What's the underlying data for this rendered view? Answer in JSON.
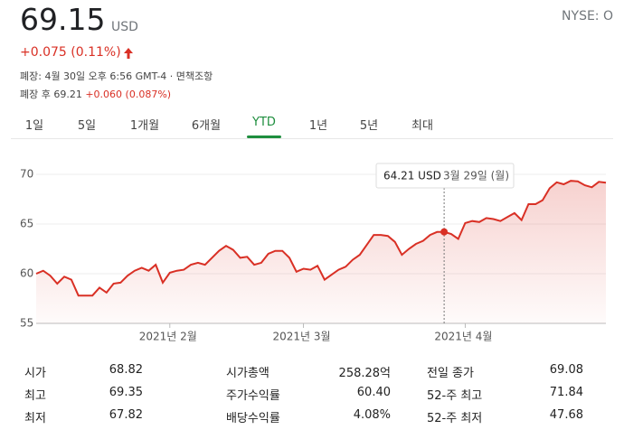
{
  "header": {
    "price": "69.15",
    "currency": "USD",
    "exchange": "NYSE: O",
    "change": "+0.075 (0.11%)",
    "closed": "폐장: 4월 30일 오후 6:56 GMT-4 · 면책조항",
    "after_hours_label": "폐장 후 69.21",
    "after_hours_change": "+0.060 (0.087%)"
  },
  "tabs": {
    "items": [
      "1일",
      "5일",
      "1개월",
      "6개월",
      "YTD",
      "1년",
      "5년",
      "최대"
    ],
    "active": 4
  },
  "chart_data": {
    "type": "line",
    "color": "#d93025",
    "categories": [
      null,
      null,
      null,
      null,
      null,
      null,
      null,
      null,
      null,
      null,
      null,
      null,
      null,
      null,
      null,
      null,
      null,
      null,
      null,
      "2021년 2월",
      null,
      null,
      null,
      null,
      null,
      null,
      null,
      null,
      null,
      null,
      null,
      null,
      null,
      null,
      null,
      null,
      null,
      null,
      "2021년 3월",
      null,
      null,
      null,
      null,
      null,
      null,
      null,
      null,
      null,
      null,
      null,
      null,
      null,
      null,
      null,
      null,
      null,
      null,
      null,
      null,
      null,
      null,
      "2021년 4월",
      null,
      null,
      null,
      null,
      null,
      null,
      null,
      null,
      null,
      null,
      null,
      null,
      null,
      null,
      null,
      null,
      null,
      null,
      null,
      null
    ],
    "values": [
      60.0,
      60.3,
      59.8,
      59.0,
      59.7,
      59.4,
      57.8,
      57.8,
      57.8,
      58.6,
      58.1,
      59.0,
      59.1,
      59.8,
      60.3,
      60.6,
      60.3,
      60.9,
      59.1,
      60.1,
      60.3,
      60.4,
      60.9,
      61.1,
      60.9,
      61.6,
      62.3,
      62.8,
      62.4,
      61.6,
      61.7,
      60.9,
      61.1,
      62.0,
      62.3,
      62.3,
      61.6,
      60.2,
      60.5,
      60.4,
      60.8,
      59.4,
      59.9,
      60.4,
      60.7,
      61.4,
      61.9,
      62.9,
      63.9,
      63.9,
      63.8,
      63.2,
      61.9,
      62.5,
      63.0,
      63.3,
      63.9,
      64.2,
      64.21,
      64.0,
      63.5,
      65.1,
      65.3,
      65.2,
      65.6,
      65.5,
      65.3,
      65.7,
      66.1,
      65.4,
      67.0,
      67.0,
      67.4,
      68.6,
      69.2,
      69.0,
      69.35,
      69.3,
      68.9,
      68.7,
      69.25,
      69.15
    ],
    "ylim": [
      55,
      70
    ],
    "yticks": [
      55,
      60,
      65,
      70
    ],
    "grid": true,
    "tooltip": {
      "index": 58,
      "value_label": "64.21 USD",
      "date": "3월 29일 (월)"
    }
  },
  "stats": {
    "rows": [
      [
        "시가",
        "68.82",
        "시가총액",
        "258.28억",
        "전일 종가",
        "69.08"
      ],
      [
        "최고",
        "69.35",
        "주가수익률",
        "60.40",
        "52-주 최고",
        "71.84"
      ],
      [
        "최저",
        "67.82",
        "배당수익률",
        "4.08%",
        "52-주 최저",
        "47.68"
      ]
    ]
  }
}
